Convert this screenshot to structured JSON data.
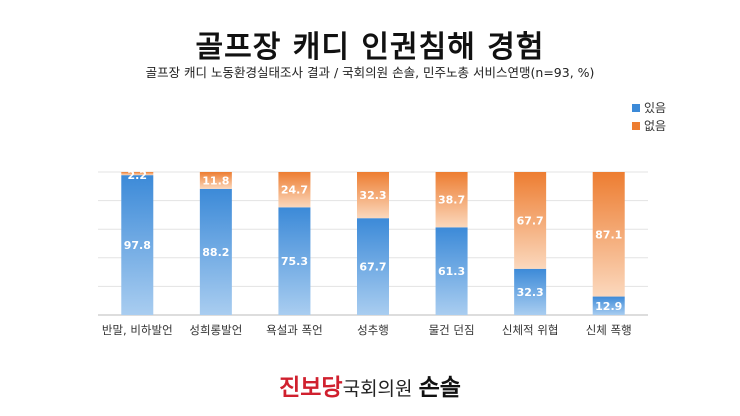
{
  "chart_data": {
    "type": "bar",
    "stacked": true,
    "title": "골프장 캐디 인권침해 경험",
    "subtitle": "골프장 캐디 노동환경실태조사 결과 / 국회의원 손솔, 민주노총 서비스연맹(n=93, %)",
    "categories": [
      "반말, 비하발언",
      "성희롱발언",
      "욕설과 폭언",
      "성추행",
      "물건 던짐",
      "신체적 위협",
      "신체 폭행"
    ],
    "series": [
      {
        "name": "있음",
        "color": "#3c8ad8",
        "values": [
          97.8,
          88.2,
          75.3,
          67.7,
          61.3,
          32.3,
          12.9
        ]
      },
      {
        "name": "없음",
        "color": "#ed7d31",
        "values": [
          2.2,
          11.8,
          24.7,
          32.3,
          38.7,
          67.7,
          87.1
        ]
      }
    ],
    "ylim": [
      0,
      100
    ],
    "grid": true,
    "legend": "top-right"
  },
  "footer": {
    "party": "진보당",
    "role": "국회의원",
    "name": "손솔"
  }
}
